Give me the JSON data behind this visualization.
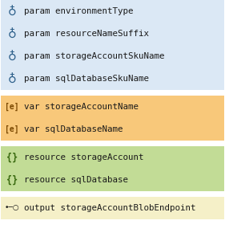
{
  "rows": [
    {
      "icon": "param",
      "text": "param environmentType",
      "bg": "#dbe8f5",
      "group": "param"
    },
    {
      "icon": "param",
      "text": "param resourceNameSuffix",
      "bg": "#dbe8f5",
      "group": "param"
    },
    {
      "icon": "param",
      "text": "param storageAccountSkuName",
      "bg": "#dbe8f5",
      "group": "param"
    },
    {
      "icon": "param",
      "text": "param sqlDatabaseSkuName",
      "bg": "#dbe8f5",
      "group": "param"
    },
    {
      "icon": "var",
      "text": "var storageAccountName",
      "bg": "#f8c87a",
      "group": "var"
    },
    {
      "icon": "var",
      "text": "var sqlDatabaseName",
      "bg": "#f8c87a",
      "group": "var"
    },
    {
      "icon": "res",
      "text": "resource storageAccount",
      "bg": "#c2dc96",
      "group": "resource"
    },
    {
      "icon": "res",
      "text": "resource sqlDatabase",
      "bg": "#c2dc96",
      "group": "resource"
    },
    {
      "icon": "out",
      "text": "output storageAccountBlobEndpoint",
      "bg": "#f5f0c8",
      "group": "output"
    }
  ],
  "icon_param": "⌖",
  "icon_var": "[e]",
  "icon_res": "{}",
  "icon_out": "•─○",
  "param_icon_color": "#2c5f8a",
  "var_icon_color": "#7a4800",
  "res_icon_color": "#3a6a10",
  "out_icon_color": "#1a1a1a",
  "text_color": "#1a1a1a",
  "font_size": 7.8,
  "icon_font_size": 8.5,
  "bg_white": "#ffffff"
}
